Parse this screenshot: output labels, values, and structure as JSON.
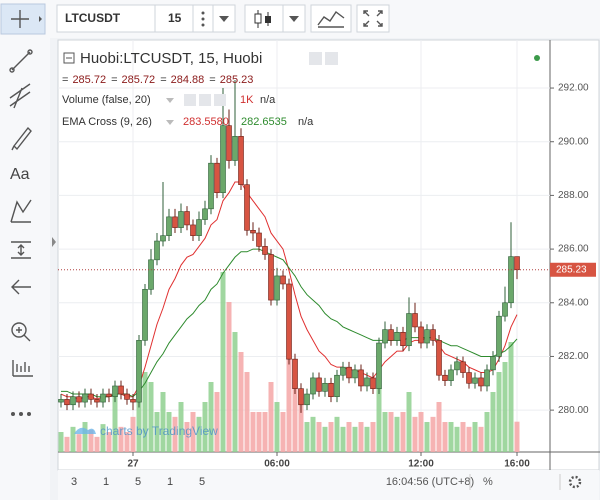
{
  "toolbar": {
    "symbol": "LTCUSDT",
    "interval": "15",
    "left_text_tool": "Aa"
  },
  "chart_data": {
    "type": "candlestick",
    "title": "Huobi:LTCUSDT, 15, Huobi",
    "ohlc_separator": "=",
    "up_color": "#6ba86b",
    "up_border": "#2f5f38",
    "down_color": "#d75442",
    "down_border": "#6b1f16",
    "categories": [
      null,
      null,
      null,
      null,
      null,
      null,
      null,
      null,
      null,
      null,
      null,
      null,
      "27",
      null,
      null,
      null,
      null,
      null,
      null,
      null,
      null,
      null,
      null,
      null,
      null,
      null,
      null,
      null,
      null,
      null,
      null,
      null,
      null,
      null,
      null,
      null,
      "06:00",
      null,
      null,
      null,
      null,
      null,
      null,
      null,
      null,
      null,
      null,
      null,
      null,
      null,
      null,
      null,
      null,
      null,
      null,
      null,
      null,
      null,
      null,
      null,
      "12:00",
      null,
      null,
      null,
      null,
      null,
      null,
      null,
      null,
      null,
      null,
      null,
      null,
      null,
      null,
      null,
      "16:00"
    ],
    "ohlc": [
      [
        280.3,
        280.6,
        280.1,
        280.4
      ],
      [
        280.4,
        280.6,
        280.0,
        280.2
      ],
      [
        280.2,
        280.7,
        280.0,
        280.5
      ],
      [
        280.5,
        280.7,
        280.1,
        280.3
      ],
      [
        280.3,
        280.8,
        280.1,
        280.6
      ],
      [
        280.6,
        280.8,
        280.2,
        280.4
      ],
      [
        280.4,
        280.6,
        280.1,
        280.3
      ],
      [
        280.3,
        280.8,
        280.1,
        280.6
      ],
      [
        280.6,
        280.8,
        280.3,
        280.5
      ],
      [
        280.5,
        281.1,
        280.3,
        280.9
      ],
      [
        280.9,
        281.1,
        280.4,
        280.6
      ],
      [
        280.6,
        280.8,
        280.2,
        280.4
      ],
      [
        280.4,
        280.6,
        280.0,
        280.3
      ],
      [
        280.3,
        282.8,
        280.1,
        282.6
      ],
      [
        282.6,
        284.7,
        282.4,
        284.5
      ],
      [
        284.5,
        286.0,
        284.3,
        285.6
      ],
      [
        285.6,
        286.6,
        285.4,
        286.3
      ],
      [
        286.3,
        288.5,
        286.1,
        286.5
      ],
      [
        286.5,
        287.5,
        286.3,
        287.2
      ],
      [
        287.2,
        287.5,
        286.6,
        286.8
      ],
      [
        286.8,
        287.7,
        286.6,
        287.4
      ],
      [
        287.4,
        287.6,
        286.7,
        286.9
      ],
      [
        286.9,
        287.1,
        286.3,
        286.5
      ],
      [
        286.5,
        287.4,
        286.3,
        287.1
      ],
      [
        287.1,
        287.8,
        286.9,
        287.5
      ],
      [
        287.5,
        289.5,
        287.3,
        289.2
      ],
      [
        289.2,
        289.4,
        287.9,
        288.1
      ],
      [
        288.1,
        292.0,
        287.9,
        290.6
      ],
      [
        290.6,
        291.2,
        289.0,
        289.3
      ],
      [
        289.3,
        292.3,
        289.1,
        290.2
      ],
      [
        290.2,
        290.5,
        288.2,
        288.4
      ],
      [
        288.4,
        288.6,
        286.5,
        286.7
      ],
      [
        286.7,
        287.0,
        286.3,
        286.6
      ],
      [
        286.6,
        286.8,
        285.9,
        286.1
      ],
      [
        286.1,
        286.4,
        285.6,
        285.8
      ],
      [
        285.8,
        286.0,
        283.9,
        284.1
      ],
      [
        284.1,
        285.3,
        283.9,
        285.0
      ],
      [
        285.0,
        285.2,
        284.5,
        284.7
      ],
      [
        284.7,
        284.9,
        281.7,
        281.9
      ],
      [
        281.9,
        282.1,
        280.6,
        280.8
      ],
      [
        280.8,
        281.0,
        279.9,
        280.2
      ],
      [
        280.2,
        280.8,
        280.0,
        280.6
      ],
      [
        280.6,
        281.4,
        280.4,
        281.2
      ],
      [
        281.2,
        281.4,
        280.5,
        280.7
      ],
      [
        280.7,
        281.2,
        280.5,
        281.0
      ],
      [
        281.0,
        281.2,
        280.3,
        280.5
      ],
      [
        280.5,
        281.5,
        280.3,
        281.3
      ],
      [
        281.3,
        281.8,
        281.1,
        281.6
      ],
      [
        281.6,
        281.8,
        281.0,
        281.2
      ],
      [
        281.2,
        281.7,
        281.0,
        281.5
      ],
      [
        281.5,
        281.7,
        280.7,
        280.9
      ],
      [
        280.9,
        281.4,
        280.7,
        281.2
      ],
      [
        281.2,
        281.4,
        280.6,
        280.8
      ],
      [
        280.8,
        282.7,
        280.6,
        282.5
      ],
      [
        282.5,
        283.3,
        282.3,
        283.0
      ],
      [
        283.0,
        283.2,
        282.4,
        282.6
      ],
      [
        282.6,
        283.1,
        282.4,
        282.9
      ],
      [
        282.9,
        283.1,
        282.2,
        282.4
      ],
      [
        282.4,
        284.2,
        282.2,
        283.6
      ],
      [
        283.6,
        284.0,
        282.9,
        283.1
      ],
      [
        283.1,
        283.3,
        282.3,
        282.5
      ],
      [
        282.5,
        283.2,
        282.3,
        283.0
      ],
      [
        283.0,
        283.2,
        282.4,
        282.6
      ],
      [
        282.6,
        282.8,
        281.1,
        281.3
      ],
      [
        281.3,
        281.5,
        280.9,
        281.1
      ],
      [
        281.1,
        281.7,
        280.9,
        281.5
      ],
      [
        281.5,
        282.0,
        281.3,
        281.8
      ],
      [
        281.8,
        282.0,
        281.2,
        281.4
      ],
      [
        281.4,
        281.6,
        280.8,
        281.0
      ],
      [
        281.0,
        281.4,
        280.8,
        281.2
      ],
      [
        281.2,
        281.4,
        280.7,
        280.9
      ],
      [
        280.9,
        281.7,
        280.7,
        281.5
      ],
      [
        281.5,
        282.2,
        281.3,
        282.0
      ],
      [
        282.0,
        283.7,
        281.8,
        283.5
      ],
      [
        283.5,
        284.6,
        283.3,
        284.0
      ],
      [
        284.0,
        287.0,
        283.8,
        285.72
      ],
      [
        285.72,
        285.72,
        284.88,
        285.23
      ]
    ],
    "volume": {
      "name": "Volume (false, 20)",
      "last_label": "1K",
      "status": "n/a",
      "up_color": "#8fd08f",
      "down_color": "#f4a6a6",
      "values": [
        660,
        500,
        830,
        590,
        990,
        730,
        500,
        920,
        660,
        1980,
        830,
        660,
        1160,
        3630,
        2640,
        2310,
        1320,
        1980,
        1320,
        1160,
        1650,
        990,
        1320,
        1160,
        1650,
        2310,
        1980,
        5940,
        4950,
        3960,
        3300,
        2640,
        1320,
        1320,
        1320,
        2310,
        1650,
        1320,
        3300,
        2640,
        1980,
        990,
        1160,
        990,
        830,
        990,
        1160,
        830,
        990,
        830,
        990,
        830,
        990,
        2640,
        1320,
        1320,
        1160,
        1320,
        1980,
        1160,
        1320,
        990,
        1160,
        1650,
        990,
        990,
        830,
        990,
        830,
        990,
        830,
        1320,
        1980,
        2640,
        2970,
        3630,
        1000
      ]
    },
    "ema": {
      "name": "EMA Cross (9, 26)",
      "status": "n/a",
      "series": [
        {
          "color": "#e03030",
          "last_label": "283.5580",
          "values": [
            280.6,
            280.5,
            280.5,
            280.4,
            280.5,
            280.5,
            280.4,
            280.5,
            280.5,
            280.6,
            280.6,
            280.5,
            280.5,
            280.9,
            281.6,
            282.4,
            283.2,
            283.8,
            284.5,
            284.9,
            285.4,
            285.7,
            285.8,
            286.1,
            286.4,
            286.9,
            287.1,
            287.8,
            288.1,
            288.5,
            288.5,
            288.1,
            287.8,
            287.5,
            287.2,
            286.6,
            286.3,
            286.0,
            285.2,
            284.3,
            283.5,
            283.0,
            282.6,
            282.2,
            282.0,
            281.7,
            281.6,
            281.6,
            281.5,
            281.5,
            281.4,
            281.3,
            281.2,
            281.5,
            281.8,
            282.0,
            282.2,
            282.2,
            282.5,
            282.6,
            282.6,
            282.7,
            282.7,
            282.4,
            282.1,
            282.0,
            281.9,
            281.8,
            281.6,
            281.5,
            281.4,
            281.4,
            281.5,
            281.9,
            282.4,
            283.1,
            283.558
          ]
        },
        {
          "color": "#2e8b2e",
          "last_label": "282.6535",
          "values": [
            280.7,
            280.7,
            280.6,
            280.6,
            280.6,
            280.6,
            280.5,
            280.5,
            280.5,
            280.6,
            280.6,
            280.6,
            280.5,
            280.7,
            281.0,
            281.4,
            281.8,
            282.1,
            282.5,
            282.8,
            283.1,
            283.4,
            283.6,
            283.9,
            284.1,
            284.5,
            284.7,
            285.1,
            285.4,
            285.7,
            285.9,
            285.9,
            286.0,
            286.0,
            285.9,
            285.8,
            285.7,
            285.6,
            285.3,
            285.0,
            284.6,
            284.3,
            284.1,
            283.9,
            283.6,
            283.4,
            283.3,
            283.1,
            283.0,
            282.9,
            282.8,
            282.7,
            282.6,
            282.6,
            282.6,
            282.6,
            282.6,
            282.6,
            282.7,
            282.7,
            282.7,
            282.7,
            282.7,
            282.6,
            282.5,
            282.4,
            282.4,
            282.3,
            282.2,
            282.1,
            282.0,
            282.0,
            282.0,
            282.1,
            282.2,
            282.4,
            282.6535
          ]
        }
      ]
    },
    "ylim": [
      278.44,
      293.79
    ],
    "yticks": [
      {
        "value": 280,
        "label": "280.00"
      },
      {
        "value": 282,
        "label": "282.00"
      },
      {
        "value": 284,
        "label": "284.00"
      },
      {
        "value": 286,
        "label": "286.00"
      },
      {
        "value": 288,
        "label": "288.00"
      },
      {
        "value": 290,
        "label": "290.00"
      },
      {
        "value": 292,
        "label": "292.00"
      }
    ],
    "grid": true,
    "watermark": "charts by TradingView"
  },
  "bottom_bar": {
    "ranges": [
      "3",
      "1",
      "5",
      "1",
      "5"
    ],
    "clock": "16:04:56 (UTC+8)",
    "percent": "%"
  }
}
